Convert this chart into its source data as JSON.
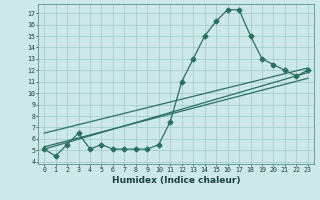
{
  "xlabel": "Humidex (Indice chaleur)",
  "bg_color": "#cce8e8",
  "grid_color": "#9dc8c8",
  "line_color": "#2a7060",
  "xlim": [
    -0.5,
    23.5
  ],
  "ylim": [
    3.8,
    17.8
  ],
  "xticks": [
    0,
    1,
    2,
    3,
    4,
    5,
    6,
    7,
    8,
    9,
    10,
    11,
    12,
    13,
    14,
    15,
    16,
    17,
    18,
    19,
    20,
    21,
    22,
    23
  ],
  "yticks": [
    4,
    5,
    6,
    7,
    8,
    9,
    10,
    11,
    12,
    13,
    14,
    15,
    16,
    17
  ],
  "curve1_x": [
    0,
    1,
    2,
    3,
    4,
    5,
    6,
    7,
    8,
    9,
    10,
    11,
    12,
    13,
    14,
    15,
    16,
    17,
    18,
    19,
    20,
    21,
    22,
    23
  ],
  "curve1_y": [
    5.1,
    4.5,
    5.5,
    6.5,
    5.1,
    5.5,
    5.1,
    5.1,
    5.1,
    5.1,
    5.5,
    7.5,
    11.0,
    13.0,
    15.0,
    16.3,
    17.3,
    17.3,
    15.0,
    13.0,
    12.5,
    12.0,
    11.5,
    12.0
  ],
  "line2_x": [
    0,
    23
  ],
  "line2_y": [
    5.1,
    11.8
  ],
  "line3_x": [
    0,
    23
  ],
  "line3_y": [
    5.3,
    11.3
  ],
  "line4_x": [
    0,
    23
  ],
  "line4_y": [
    6.5,
    12.2
  ],
  "marker": "D",
  "markersize": 2.5,
  "linewidth": 0.9,
  "xlabel_fontsize": 6.5,
  "tick_fontsize": 4.8
}
